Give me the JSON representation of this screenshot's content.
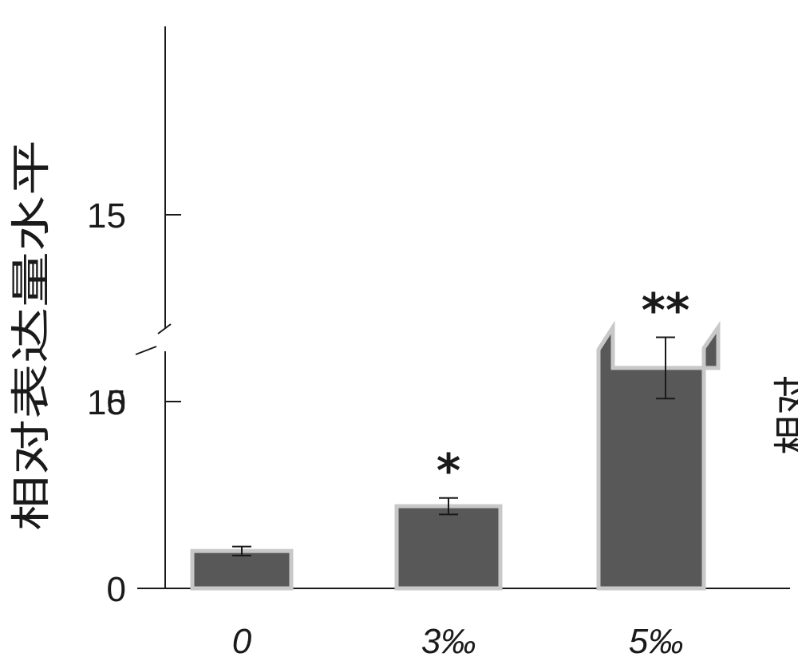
{
  "chart_data": {
    "type": "bar",
    "categories": [
      "0",
      "3‰",
      "5‰"
    ],
    "values": [
      1.0,
      2.2,
      10.9
    ],
    "errors": [
      0.12,
      0.22,
      0.82
    ],
    "annotations": [
      "",
      "*",
      "**"
    ],
    "ylabel": "相对表达量水平",
    "xlabel": "",
    "title": "",
    "ylim": [
      0,
      15
    ],
    "yticks": [
      0,
      5,
      10,
      15
    ],
    "axis_break": true,
    "grid": false,
    "legend": "none",
    "colors": {
      "bar": "#585858",
      "bar_edge": "#c8c8c8",
      "axis": "#1a1a1a"
    }
  },
  "edge_text": "相对"
}
